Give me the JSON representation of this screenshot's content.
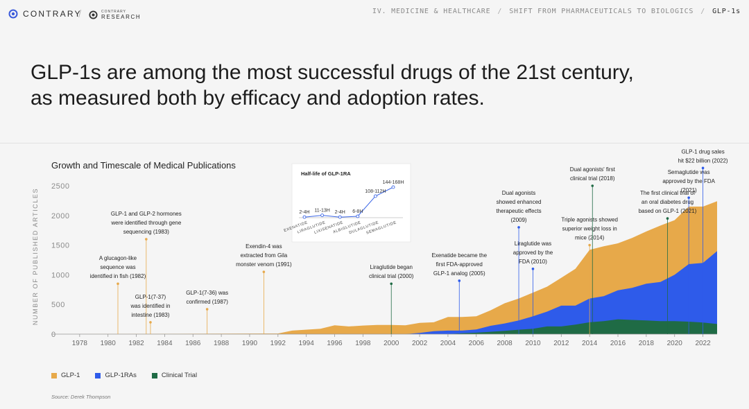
{
  "header": {
    "brand": "CONTRARY",
    "sub_brand_small": "CONTRARY",
    "sub_brand_big": "RESEARCH",
    "breadcrumb": [
      "IV. MEDICINE & HEALTHCARE",
      "SHIFT FROM PHARMACEUTICALS TO BIOLOGICS",
      "GLP-1s"
    ]
  },
  "headline": {
    "line1": "GLP-1s are among the most successful drugs of the 21st century,",
    "line2": "as measured both by efficacy and adoption rates."
  },
  "colors": {
    "glp1": "#E7A94A",
    "glp1ras": "#2E5BEA",
    "clinical": "#1F6B45",
    "axis": "#8a8a8a"
  },
  "source": "Source: Derek Thompson",
  "chart_data": [
    {
      "type": "area",
      "stacking": "overlapping",
      "title": "Growth and Timescale of Medical Publications",
      "ylabel": "NUMBER OF PUBLISHED ARTICLES",
      "xlabel": "",
      "xlim": [
        1976,
        2023
      ],
      "ylim": [
        0,
        2500
      ],
      "x_ticks": [
        1978,
        1980,
        1982,
        1984,
        1986,
        1988,
        1990,
        1992,
        1994,
        1996,
        1998,
        2000,
        2002,
        2004,
        2006,
        2008,
        2010,
        2012,
        2014,
        2016,
        2018,
        2020,
        2022
      ],
      "y_ticks": [
        0,
        500,
        1000,
        1500,
        2000,
        2500
      ],
      "series": [
        {
          "name": "GLP-1",
          "points": [
            [
              1976,
              0
            ],
            [
              1992,
              10
            ],
            [
              1993,
              60
            ],
            [
              1995,
              90
            ],
            [
              1996,
              150
            ],
            [
              1997,
              130
            ],
            [
              1998,
              145
            ],
            [
              1999,
              155
            ],
            [
              2000,
              155
            ],
            [
              2001,
              150
            ],
            [
              2002,
              190
            ],
            [
              2003,
              200
            ],
            [
              2004,
              290
            ],
            [
              2005,
              290
            ],
            [
              2006,
              300
            ],
            [
              2007,
              400
            ],
            [
              2008,
              520
            ],
            [
              2009,
              600
            ],
            [
              2010,
              700
            ],
            [
              2011,
              800
            ],
            [
              2012,
              950
            ],
            [
              2013,
              1100
            ],
            [
              2014,
              1420
            ],
            [
              2015,
              1480
            ],
            [
              2016,
              1530
            ],
            [
              2017,
              1620
            ],
            [
              2018,
              1730
            ],
            [
              2019,
              1830
            ],
            [
              2020,
              1920
            ],
            [
              2021,
              2150
            ],
            [
              2022,
              2150
            ],
            [
              2023,
              2240
            ]
          ]
        },
        {
          "name": "GLP-1RAs",
          "points": [
            [
              2001,
              0
            ],
            [
              2002,
              20
            ],
            [
              2003,
              50
            ],
            [
              2004,
              60
            ],
            [
              2005,
              60
            ],
            [
              2006,
              80
            ],
            [
              2007,
              140
            ],
            [
              2008,
              180
            ],
            [
              2009,
              230
            ],
            [
              2010,
              300
            ],
            [
              2011,
              380
            ],
            [
              2012,
              480
            ],
            [
              2013,
              480
            ],
            [
              2014,
              600
            ],
            [
              2015,
              640
            ],
            [
              2016,
              740
            ],
            [
              2017,
              780
            ],
            [
              2018,
              850
            ],
            [
              2019,
              880
            ],
            [
              2020,
              1000
            ],
            [
              2021,
              1180
            ],
            [
              2022,
              1200
            ],
            [
              2023,
              1400
            ]
          ]
        },
        {
          "name": "Clinical Trial",
          "points": [
            [
              2004,
              0
            ],
            [
              2005,
              15
            ],
            [
              2006,
              25
            ],
            [
              2007,
              40
            ],
            [
              2008,
              55
            ],
            [
              2009,
              75
            ],
            [
              2010,
              90
            ],
            [
              2011,
              130
            ],
            [
              2012,
              130
            ],
            [
              2013,
              160
            ],
            [
              2014,
              200
            ],
            [
              2015,
              220
            ],
            [
              2016,
              250
            ],
            [
              2017,
              240
            ],
            [
              2018,
              230
            ],
            [
              2019,
              220
            ],
            [
              2020,
              220
            ],
            [
              2021,
              210
            ],
            [
              2022,
              195
            ],
            [
              2023,
              170
            ]
          ]
        }
      ],
      "legend": [
        "GLP-1",
        "GLP-1RAs",
        "Clinical Trial"
      ],
      "legend_position": "bottom-left",
      "annotations": [
        {
          "x": 1982.7,
          "y": 1600,
          "color": "#E7A94A",
          "lines": [
            "GLP-1 and GLP-2 hormones",
            "were identified through gene",
            "sequencing (1983)"
          ]
        },
        {
          "x": 1980.7,
          "y": 850,
          "color": "#E7A94A",
          "lines": [
            "A glucagon-like",
            "sequence was",
            "identified in fish (1982)"
          ]
        },
        {
          "x": 1983.0,
          "y": 200,
          "color": "#E7A94A",
          "lines": [
            "GLP-1(7-37)",
            "was identified in",
            "intestine (1983)"
          ]
        },
        {
          "x": 1987.0,
          "y": 420,
          "color": "#E7A94A",
          "lines": [
            "GLP-1(7-36) was",
            "confirmed (1987)"
          ]
        },
        {
          "x": 1991.0,
          "y": 1050,
          "color": "#E7A94A",
          "lines": [
            "Exendin-4 was",
            "extracted from Gila",
            "monster venom (1991)"
          ]
        },
        {
          "x": 2000.0,
          "y": 850,
          "color": "#1F6B45",
          "lines": [
            "Liraglutide began",
            "clinical trial (2000)"
          ]
        },
        {
          "x": 2004.8,
          "y": 900,
          "color": "#2E5BEA",
          "lines": [
            "Exenatide became the",
            "first FDA-approved",
            "GLP-1 analog (2005)"
          ]
        },
        {
          "x": 2009.0,
          "y": 1800,
          "color": "#2E5BEA",
          "lines": [
            "Dual agonists",
            "showed enhanced",
            "therapeutic effects",
            "(2009)"
          ]
        },
        {
          "x": 2010.0,
          "y": 1100,
          "color": "#2E5BEA",
          "lines": [
            "Liraglutide was",
            "approved by the",
            "FDA (2010)"
          ]
        },
        {
          "x": 2014.0,
          "y": 1500,
          "color": "#E7A94A",
          "lines": [
            "Triple agonists showed",
            "superior weight loss in",
            "mice (2014)"
          ]
        },
        {
          "x": 2014.2,
          "y": 2500,
          "color": "#1F6B45",
          "lines": [
            "Dual agonists' first",
            "clinical trial (2018)"
          ]
        },
        {
          "x": 2019.5,
          "y": 1950,
          "color": "#1F6B45",
          "lines": [
            "The first clinical trial of",
            "an oral diabetes drug",
            "based on GLP-1 (2021)"
          ]
        },
        {
          "x": 2021.0,
          "y": 2300,
          "color": "#2E5BEA",
          "lines": [
            "Semaglutide was",
            "approved by the FDA",
            "(2021)"
          ]
        },
        {
          "x": 2022.0,
          "y": 2800,
          "color": "#2E5BEA",
          "lines": [
            "GLP-1 drug sales",
            "hit $22 billion (2022)"
          ]
        }
      ]
    },
    {
      "type": "line",
      "title": "Half-life of GLP-1RA",
      "categories": [
        "EXENATIDE",
        "LIRAGLUTIDE",
        "LIXISENATIDE",
        "ALBIGLUTIDE",
        "DULAGLUTIDE",
        "SEMAGLUTIDE"
      ],
      "values": [
        3,
        12,
        3,
        7,
        110,
        156
      ],
      "data_labels": [
        "2-4H",
        "11-13H",
        "2-4H",
        "6-8H",
        "108-112H",
        "144-168H"
      ]
    }
  ]
}
